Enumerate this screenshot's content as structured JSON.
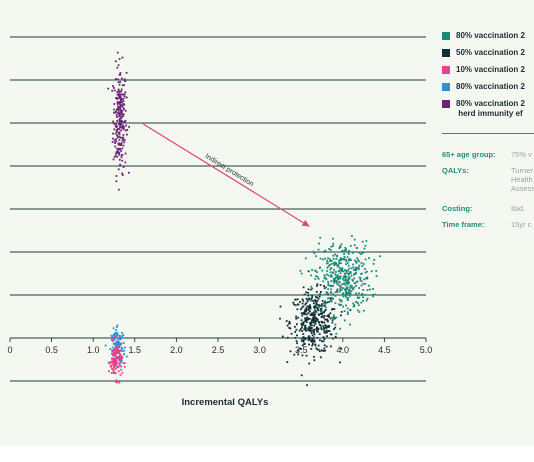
{
  "chart_data": {
    "type": "scatter",
    "xlabel": "Incremental QALYs",
    "xlim": [
      0,
      5
    ],
    "x_ticks": [
      "0",
      "0.5",
      "1.0",
      "1.5",
      "2.0",
      "2.5",
      "3.0",
      "3.5",
      "4.0",
      "4.5",
      "5.0"
    ],
    "grid": "horizontal",
    "legend_position": "right",
    "series": [
      {
        "name": "80% vaccination 2",
        "color": "#1a8a78",
        "x_mean": 4.0,
        "x_spread": 0.17,
        "y_mean": 0.27,
        "y_spread": 0.08
      },
      {
        "name": "50% vaccination 2",
        "color": "#0f2e36",
        "x_mean": 3.65,
        "x_spread": 0.14,
        "y_mean": 0.07,
        "y_spread": 0.07
      },
      {
        "name": "10% vaccination 2",
        "color": "#e83e8c",
        "x_mean": 1.27,
        "x_spread": 0.04,
        "y_mean": -0.1,
        "y_spread": 0.04
      },
      {
        "name": "80% vaccination 2",
        "color": "#2f8fd2",
        "x_mean": 1.3,
        "x_spread": 0.04,
        "y_mean": -0.04,
        "y_spread": 0.04
      },
      {
        "name": "80% vaccination 2\n herd immunity ef",
        "color": "#6a2378",
        "x_mean": 1.32,
        "x_spread": 0.04,
        "y_mean": 0.98,
        "y_spread": 0.12
      }
    ],
    "annotation": {
      "text": "Indirect protection",
      "color": "#e0457b",
      "from": [
        1.6,
        0.96
      ],
      "to": [
        3.6,
        0.5
      ]
    }
  },
  "legend": {
    "items": [
      {
        "label": "80% vaccination 2",
        "color": "#1a8a78"
      },
      {
        "label": "50% vaccination 2",
        "color": "#0f2e36"
      },
      {
        "label": "10% vaccination 2",
        "color": "#e83e8c"
      },
      {
        "label": "80% vaccination 2",
        "color": "#2f8fd2"
      },
      {
        "label": "80% vaccination 2\n herd immunity ef",
        "color": "#6a2378"
      }
    ]
  },
  "info": {
    "age_group_label": "65+ age group:",
    "age_group_value": "75% v",
    "qalys_label": "QALYs:",
    "qalys_value": "Turner\nHealth\nAssess",
    "costing_label": "Costing:",
    "costing_value": "Ibid.",
    "timeframe_label": "Time frame:",
    "timeframe_value": "15yr c"
  }
}
